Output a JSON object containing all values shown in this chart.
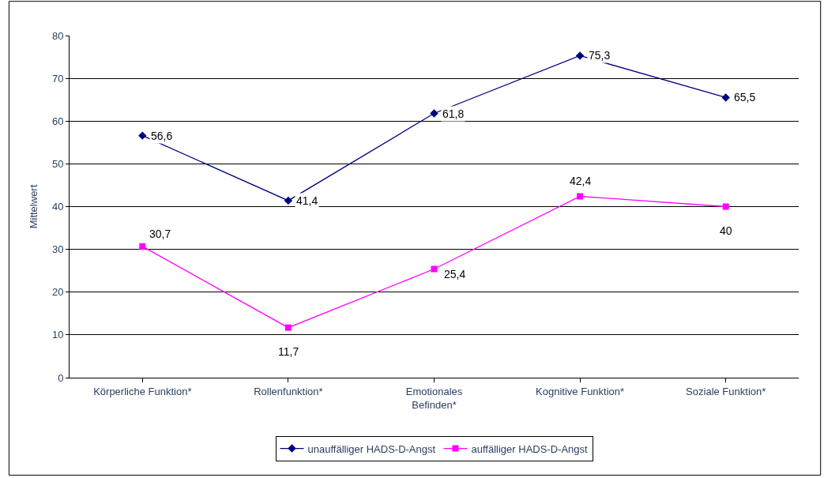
{
  "chart_data": {
    "type": "line",
    "ylabel": "Mittelwert",
    "categories": [
      "Körperliche Funktion*",
      "Rollenfunktion*",
      "Emotionales\nBefinden*",
      "Kognitive Funktion*",
      "Soziale Funktion*"
    ],
    "series": [
      {
        "name": "unauffälliger HADS-D-Angst",
        "color": "#000080",
        "marker": "diamond",
        "values": [
          56.6,
          41.4,
          61.8,
          75.3,
          65.5
        ],
        "value_labels": [
          "56,6",
          "41,4",
          "61,8",
          "75,3",
          "65,5"
        ]
      },
      {
        "name": "auffälliger HADS-D-Angst",
        "color": "#ff00ff",
        "marker": "square",
        "values": [
          30.7,
          11.7,
          25.4,
          42.4,
          40
        ],
        "value_labels": [
          "30,7",
          "11,7",
          "25,4",
          "42,4",
          "40"
        ]
      }
    ],
    "ylim": [
      0,
      80
    ],
    "yticks": [
      0,
      10,
      20,
      30,
      40,
      50,
      60,
      70,
      80
    ],
    "grid": "y",
    "legend": "bottom",
    "line_style": "solid"
  }
}
